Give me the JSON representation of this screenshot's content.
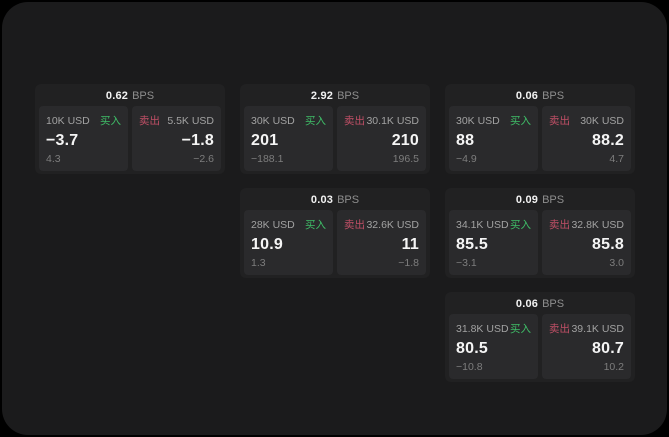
{
  "labels": {
    "bps_unit": "BPS",
    "buy": "买入",
    "sell": "卖出"
  },
  "colors": {
    "background": "#000000",
    "surface": "#1b1b1c",
    "card": "#212122",
    "panel": "#2a2a2c",
    "buy_green": "#3fbe68",
    "sell_red": "#c04f66"
  },
  "cards": [
    {
      "bps": "0.62",
      "buy": {
        "amount": "10K USD",
        "price": "−3.7",
        "sub": "4.3"
      },
      "sell": {
        "amount": "5.5K USD",
        "price": "−1.8",
        "sub": "−2.6"
      }
    },
    {
      "bps": "2.92",
      "buy": {
        "amount": "30K USD",
        "price": "201",
        "sub": "−188.1"
      },
      "sell": {
        "amount": "30.1K USD",
        "price": "210",
        "sub": "196.5"
      }
    },
    {
      "bps": "0.06",
      "buy": {
        "amount": "30K USD",
        "price": "88",
        "sub": "−4.9"
      },
      "sell": {
        "amount": "30K USD",
        "price": "88.2",
        "sub": "4.7"
      }
    },
    {
      "bps": "0.03",
      "buy": {
        "amount": "28K USD",
        "price": "10.9",
        "sub": "1.3"
      },
      "sell": {
        "amount": "32.6K USD",
        "price": "11",
        "sub": "−1.8"
      }
    },
    {
      "bps": "0.09",
      "buy": {
        "amount": "34.1K USD",
        "price": "85.5",
        "sub": "−3.1"
      },
      "sell": {
        "amount": "32.8K USD",
        "price": "85.8",
        "sub": "3.0"
      }
    },
    {
      "bps": "0.06",
      "buy": {
        "amount": "31.8K USD",
        "price": "80.5",
        "sub": "−10.8"
      },
      "sell": {
        "amount": "39.1K USD",
        "price": "80.7",
        "sub": "10.2"
      }
    }
  ]
}
